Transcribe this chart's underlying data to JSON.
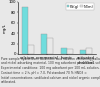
{
  "categories": [
    "calcium",
    "commercial",
    "humic",
    "activated\ncharcoal"
  ],
  "pd_values": [
    90,
    38,
    12,
    7
  ],
  "ni_values": [
    18,
    30,
    10,
    12
  ],
  "pd_color": "#70DDDD",
  "ni_color": "#E8E8E8",
  "bar_edgecolor": "#999999",
  "legend_labels": [
    "Pd(g)",
    "Ni(m)"
  ],
  "ylabel": "mg/L",
  "ylim": [
    0,
    100
  ],
  "yticks": [
    0,
    20,
    40,
    60,
    80,
    100
  ],
  "background_color": "#E8E8E8",
  "bar_width": 0.32,
  "tick_fontsize": 2.8,
  "legend_fontsize": 2.5,
  "caption_lines": [
    "Pure sample hydrochloric acid/nitric acid solution containing palladium",
    "and nickel adsorbing material, 100 mg adsorbent per 100 mL solution,",
    "Experimental conditions: 100 mg adsorbent per 100 mL solution,",
    "Contact time = 2 h, pH = 7.0, Pd standard 70 % HNO3 =",
    "Initial concentrations: undiluted calcium and nickel organic complexes",
    "calibrated."
  ],
  "caption_fontsize": 2.2
}
